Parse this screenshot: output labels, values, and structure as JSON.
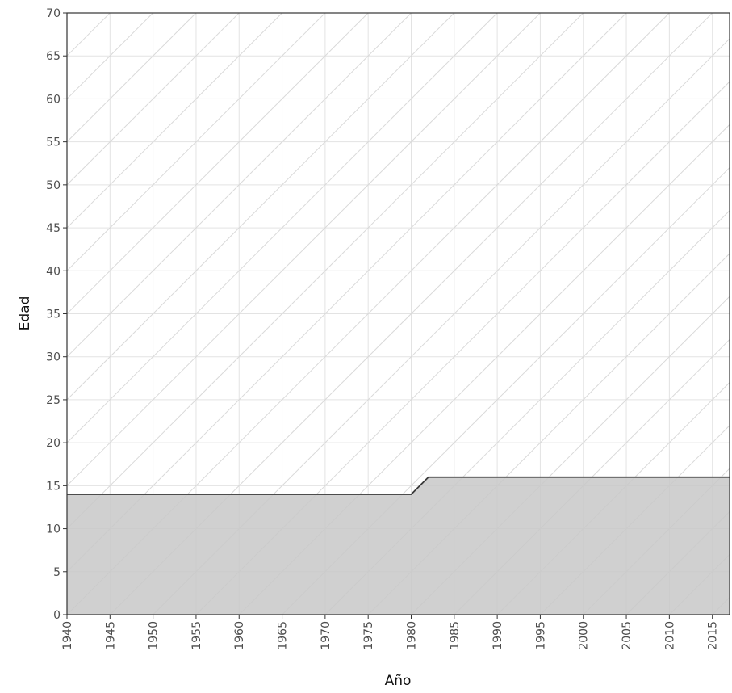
{
  "chart_data": {
    "type": "area",
    "title": "",
    "xlabel": "Año",
    "ylabel": "Edad",
    "xlim": [
      1940,
      2017
    ],
    "ylim": [
      0,
      70
    ],
    "x_ticks": [
      1940,
      1945,
      1950,
      1955,
      1960,
      1965,
      1970,
      1975,
      1980,
      1985,
      1990,
      1995,
      2000,
      2005,
      2010,
      2015
    ],
    "y_ticks": [
      0,
      5,
      10,
      15,
      20,
      25,
      30,
      35,
      40,
      45,
      50,
      55,
      60,
      65,
      70
    ],
    "grid": true,
    "diagonal_guides": true,
    "legend": "none",
    "series": [
      {
        "x": [
          1940,
          1980,
          1981,
          1982,
          2017
        ],
        "values": [
          14,
          14,
          15,
          16,
          16
        ]
      }
    ],
    "colors": {
      "fill": "#c8c8c8",
      "line": "#3a3a3a",
      "grid": "#e3e3e3",
      "diagonal": "#d9d9d9",
      "panel_border": "#333333",
      "tick_text": "#4d4d4d"
    }
  }
}
